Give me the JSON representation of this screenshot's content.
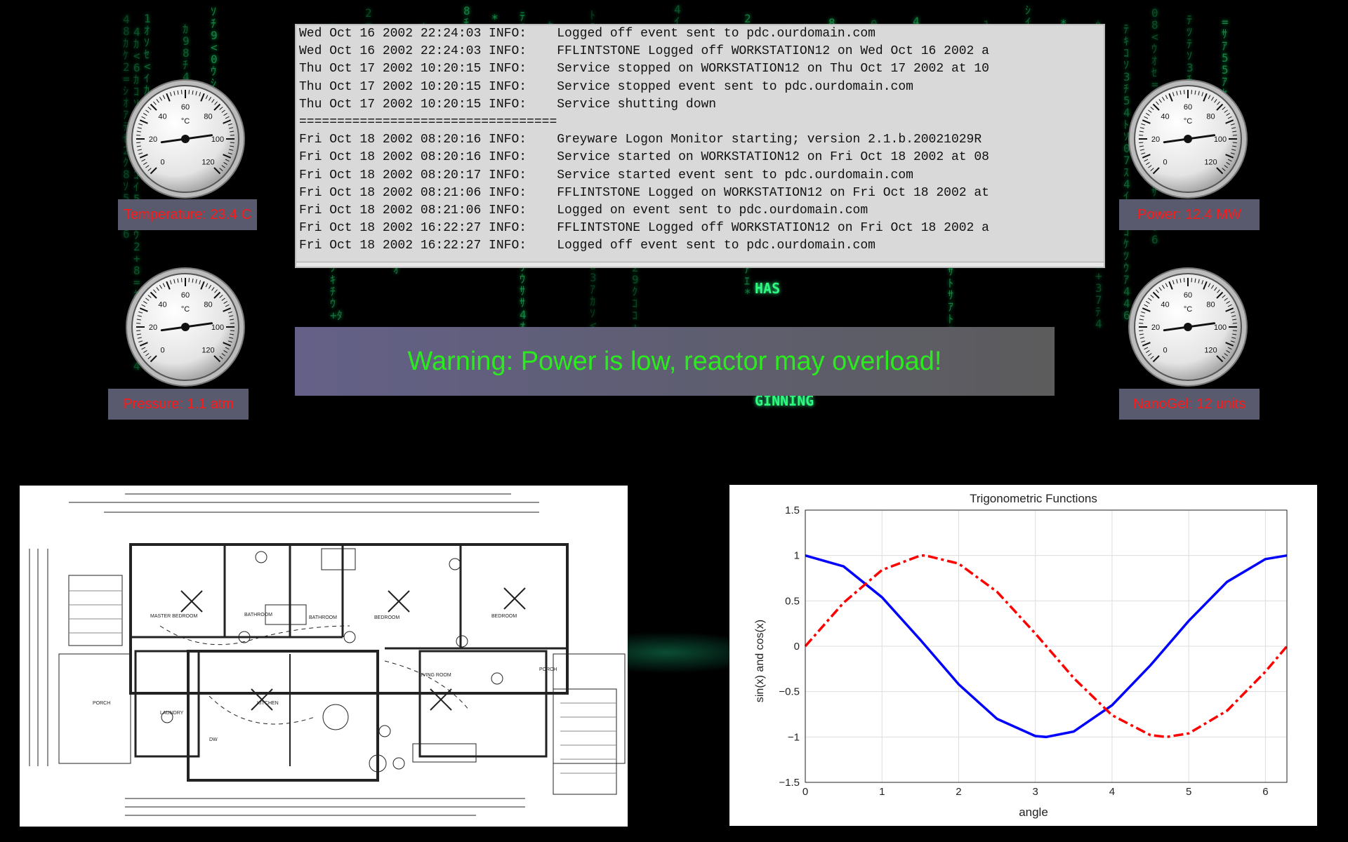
{
  "log": {
    "lines": [
      "Wed Oct 16 2002 22:24:03 INFO:    Logged off event sent to pdc.ourdomain.com",
      "Wed Oct 16 2002 22:24:03 INFO:    FFLINTSTONE Logged off WORKSTATION12 on Wed Oct 16 2002 a",
      "Thu Oct 17 2002 10:20:15 INFO:    Service stopped on WORKSTATION12 on Thu Oct 17 2002 at 10",
      "Thu Oct 17 2002 10:20:15 INFO:    Service stopped event sent to pdc.ourdomain.com",
      "Thu Oct 17 2002 10:20:15 INFO:    Service shutting down",
      "==================================",
      "Fri Oct 18 2002 08:20:16 INFO:    Greyware Logon Monitor starting; version 2.1.b.20021029R",
      "Fri Oct 18 2002 08:20:16 INFO:    Service started on WORKSTATION12 on Fri Oct 18 2002 at 08",
      "Fri Oct 18 2002 08:20:17 INFO:    Service started event sent to pdc.ourdomain.com",
      "Fri Oct 18 2002 08:21:06 INFO:    FFLINTSTONE Logged on WORKSTATION12 on Fri Oct 18 2002 at",
      "Fri Oct 18 2002 08:21:06 INFO:    Logged on event sent to pdc.ourdomain.com",
      "Fri Oct 18 2002 16:22:27 INFO:    FFLINTSTONE Logged off WORKSTATION12 on Fri Oct 18 2002 a",
      "Fri Oct 18 2002 16:22:27 INFO:    Logged off event sent to pdc.ourdomain.com"
    ]
  },
  "gauges": {
    "unit": "°C",
    "ticks": [
      "0",
      "20",
      "40",
      "60",
      "80",
      "100",
      "120"
    ],
    "temperature": {
      "label": "Temperature: 23.4 C"
    },
    "power": {
      "label": "Power: 12.4 MW"
    },
    "pressure": {
      "label": "Pressure: 1.1 atm"
    },
    "nanogel": {
      "label": "NanoGel: 12 units"
    }
  },
  "warning": {
    "text": "Warning: Power is low, reactor may overload!"
  },
  "background": {
    "word_top": "HAS",
    "word_bottom": "GINNING"
  },
  "floorplan": {
    "rooms": [
      "MASTER BEDROOM",
      "BATHROOM",
      "BATHROOM",
      "BEDROOM",
      "BEDROOM",
      "KITCHEN",
      "LIVING ROOM",
      "PORCH",
      "PORCH",
      "LAUNDRY",
      "DW"
    ]
  },
  "chart_data": {
    "type": "line",
    "title": "Trigonometric Functions",
    "xlabel": "angle",
    "ylabel": "sin(x) and cos(x)",
    "xlim": [
      0,
      6.28
    ],
    "ylim": [
      -1.5,
      1.5
    ],
    "xticks": [
      "0",
      "1",
      "2",
      "3",
      "4",
      "5",
      "6"
    ],
    "yticks": [
      "1.5",
      "1",
      "0.5",
      "0",
      "−0.5",
      "−1",
      "−1.5"
    ],
    "grid": true,
    "series": [
      {
        "function": "cos(x)",
        "color": "#0000ff",
        "style": "solid",
        "x": [
          0,
          0.5,
          1,
          1.5,
          2,
          2.5,
          3,
          3.14,
          3.5,
          4,
          4.5,
          5,
          5.5,
          6,
          6.28
        ],
        "y": [
          1,
          0.88,
          0.54,
          0.07,
          -0.42,
          -0.8,
          -0.99,
          -1,
          -0.94,
          -0.65,
          -0.21,
          0.28,
          0.71,
          0.96,
          1
        ]
      },
      {
        "function": "sin(x)",
        "color": "#ff0000",
        "style": "dashed",
        "x": [
          0,
          0.5,
          1,
          1.5,
          1.57,
          2,
          2.5,
          3,
          3.5,
          4,
          4.5,
          4.71,
          5,
          5.5,
          6,
          6.28
        ],
        "y": [
          0,
          0.48,
          0.84,
          1,
          1,
          0.91,
          0.6,
          0.14,
          -0.35,
          -0.76,
          -0.98,
          -1,
          -0.96,
          -0.71,
          -0.28,
          0
        ]
      }
    ]
  }
}
